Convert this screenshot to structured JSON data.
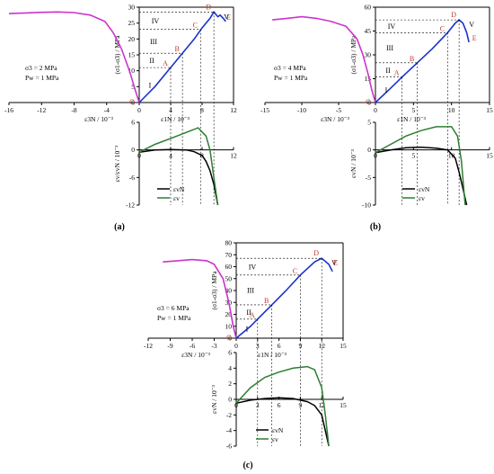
{
  "figure": {
    "panels": [
      {
        "tag": "(a)",
        "annotations": {
          "confining": "σ3 = 2 MPa",
          "pore": "Pw = 1 MPa"
        },
        "top": {
          "ylabel": "(σ1-σ3) / MPa",
          "x_left_label": "ε3N / 10⁻³",
          "x_right_label": "ε1N / 10⁻³",
          "x_ticks": [
            "-16",
            "-12",
            "-8",
            "-4",
            "0",
            "4",
            "8",
            "12"
          ],
          "y_ticks": [
            "0",
            "5",
            "10",
            "15",
            "20",
            "25",
            "30"
          ],
          "points": [
            "O",
            "A",
            "B",
            "C",
            "D",
            "E"
          ],
          "stages": [
            "I",
            "II",
            "III",
            "IV",
            "V"
          ]
        },
        "bottom": {
          "ylabel": "εv/εvN / 10⁻³",
          "x_ticks": [
            "0",
            "4",
            "8",
            "12"
          ],
          "y_ticks": [
            "6",
            "0",
            "-6",
            "-12"
          ],
          "legend": [
            "εvN",
            "εv"
          ]
        }
      },
      {
        "tag": "(b)",
        "annotations": {
          "confining": "σ3 = 4 MPa",
          "pore": "Pw = 1 MPa"
        },
        "top": {
          "ylabel": "(σ1-σ3) / MPa",
          "x_left_label": "ε3N / 10⁻³",
          "x_right_label": "ε1N / 10⁻³",
          "x_ticks": [
            "-15",
            "-10",
            "-5",
            "0",
            "5",
            "10",
            "15"
          ],
          "y_ticks": [
            "0",
            "15",
            "30",
            "45",
            "60"
          ],
          "points": [
            "O",
            "A",
            "B",
            "C",
            "D",
            "E"
          ],
          "stages": [
            "I",
            "II",
            "III",
            "IV",
            "V"
          ]
        },
        "bottom": {
          "ylabel": "εvN / 10⁻³",
          "x_ticks": [
            "0",
            "5",
            "10",
            "15"
          ],
          "y_ticks": [
            "5",
            "0",
            "-5",
            "-10"
          ],
          "legend": [
            "εvN",
            "εv"
          ]
        }
      },
      {
        "tag": "(c)",
        "annotations": {
          "confining": "σ3 = 6 MPa",
          "pore": "Pw = 1 MPa"
        },
        "top": {
          "ylabel": "(σ1-σ3) / MPa",
          "x_left_label": "ε3N / 10⁻³",
          "x_right_label": "ε1N / 10⁻³",
          "x_ticks": [
            "-12",
            "-9",
            "-6",
            "-3",
            "0",
            "3",
            "6",
            "9",
            "12",
            "15"
          ],
          "y_ticks": [
            "0",
            "10",
            "20",
            "30",
            "40",
            "50",
            "60",
            "70",
            "80"
          ],
          "points": [
            "O",
            "A",
            "B",
            "C",
            "D",
            "E"
          ],
          "stages": [
            "I",
            "II",
            "III",
            "IV",
            "V"
          ]
        },
        "bottom": {
          "ylabel": "εvN / 10⁻³",
          "x_ticks": [
            "0",
            "3",
            "6",
            "9",
            "12",
            "15"
          ],
          "y_ticks": [
            "6",
            "4",
            "2",
            "0",
            "-2",
            "-4",
            "-6"
          ],
          "legend": [
            "εvN",
            "εv"
          ]
        }
      }
    ]
  },
  "colors": {
    "lateral": "#cc33cc",
    "axial": "#1a33cc",
    "volumetric_net": "#000000",
    "volumetric": "#2e7d32",
    "point_label": "#c0392b"
  },
  "chart_data": [
    {
      "type": "line",
      "panel": "(a) top",
      "xlim": [
        -16,
        12
      ],
      "ylim": [
        0,
        30
      ],
      "series": [
        {
          "role": "lateral",
          "x": [
            0,
            -0.5,
            -1.2,
            -2.2,
            -3.2,
            -4.2,
            -6,
            -8,
            -10,
            -12,
            -14,
            -16
          ],
          "y": [
            0,
            4,
            10,
            17,
            22,
            25.5,
            27.5,
            28.3,
            28.5,
            28.4,
            28.2,
            28
          ]
        },
        {
          "role": "axial",
          "x": [
            0,
            2,
            4,
            5.5,
            7,
            8,
            9,
            9.5,
            10,
            10.3,
            10.7,
            11
          ],
          "y": [
            0,
            5,
            11,
            15.5,
            20,
            23.5,
            26.5,
            28.5,
            27,
            27.5,
            26.5,
            25.5
          ]
        }
      ],
      "points": {
        "A": [
          4,
          11
        ],
        "B": [
          5.5,
          15.5
        ],
        "C": [
          7.8,
          23
        ],
        "D": [
          9.5,
          28.5
        ],
        "E": [
          10.7,
          25.5
        ]
      }
    },
    {
      "type": "line",
      "panel": "(a) bottom",
      "xlim": [
        0,
        12
      ],
      "ylim": [
        -12,
        6
      ],
      "series": [
        {
          "name": "εvN",
          "x": [
            0,
            2,
            4,
            6,
            7,
            8,
            8.5,
            9,
            9.5,
            10
          ],
          "y": [
            -0.5,
            0,
            0.1,
            0,
            -0.4,
            -1.2,
            -2.5,
            -4.5,
            -7.5,
            -12
          ]
        },
        {
          "name": "εv",
          "x": [
            0,
            2,
            4,
            6,
            7.5,
            8.5,
            9,
            9.5,
            10
          ],
          "y": [
            -0.5,
            1.2,
            2.5,
            3.8,
            4.8,
            3,
            0,
            -6,
            -12
          ]
        }
      ]
    },
    {
      "type": "line",
      "panel": "(b) top",
      "xlim": [
        -15,
        15
      ],
      "ylim": [
        0,
        60
      ],
      "series": [
        {
          "role": "lateral",
          "x": [
            0,
            -0.5,
            -1,
            -1.7,
            -2.5,
            -4,
            -6,
            -8,
            -10,
            -12,
            -14
          ],
          "y": [
            0,
            8,
            18,
            30,
            40,
            48,
            51,
            53,
            54,
            53,
            52
          ]
        },
        {
          "role": "axial",
          "x": [
            0,
            2,
            3.5,
            5.5,
            7.5,
            9.5,
            10.5,
            11,
            11.5,
            12,
            12.3
          ],
          "y": [
            0,
            9,
            16,
            25,
            34,
            44,
            50,
            52,
            50,
            44,
            38
          ]
        }
      ],
      "points": {
        "A": [
          3.5,
          16
        ],
        "B": [
          5.5,
          25
        ],
        "C": [
          9.5,
          44
        ],
        "D": [
          11,
          52
        ],
        "E": [
          12.3,
          38
        ]
      }
    },
    {
      "type": "line",
      "panel": "(b) bottom",
      "xlim": [
        0,
        15
      ],
      "ylim": [
        -10,
        5
      ],
      "series": [
        {
          "name": "εvN",
          "x": [
            0,
            2,
            4,
            6,
            8,
            9.5,
            10.5,
            11,
            11.5,
            12
          ],
          "y": [
            -0.5,
            0,
            0.4,
            0.5,
            0.3,
            0,
            -1.5,
            -4,
            -7,
            -10
          ]
        },
        {
          "name": "εv",
          "x": [
            0,
            2,
            4,
            6,
            8,
            10,
            10.8,
            11.3,
            11.8
          ],
          "y": [
            -0.5,
            1,
            2.5,
            3.5,
            4.2,
            4.2,
            2.5,
            -2,
            -10
          ]
        }
      ]
    },
    {
      "type": "line",
      "panel": "(c) top",
      "xlim": [
        -12,
        15
      ],
      "ylim": [
        0,
        80
      ],
      "series": [
        {
          "role": "lateral",
          "x": [
            0,
            -0.4,
            -1,
            -1.8,
            -3,
            -4,
            -6,
            -8,
            -10
          ],
          "y": [
            0,
            10,
            30,
            50,
            62,
            65,
            66,
            65,
            64
          ]
        },
        {
          "role": "axial",
          "x": [
            0,
            2,
            3,
            5,
            7,
            9,
            11,
            12,
            13,
            13.5
          ],
          "y": [
            0,
            10,
            16,
            28,
            40,
            53,
            64,
            67,
            62,
            56
          ]
        }
      ],
      "points": {
        "A": [
          3,
          16
        ],
        "B": [
          5,
          28
        ],
        "C": [
          9,
          53
        ],
        "D": [
          12,
          67
        ],
        "E": [
          13.2,
          60
        ]
      }
    },
    {
      "type": "line",
      "panel": "(c) bottom",
      "xlim": [
        0,
        15
      ],
      "ylim": [
        -6,
        6
      ],
      "series": [
        {
          "name": "εvN",
          "x": [
            0,
            2,
            4,
            6,
            8,
            10,
            11,
            12,
            12.5,
            13
          ],
          "y": [
            -0.5,
            -0.1,
            0.1,
            0.2,
            0.1,
            -0.3,
            -0.8,
            -2,
            -4,
            -6
          ]
        },
        {
          "name": "εv",
          "x": [
            0,
            2,
            4,
            6,
            8,
            10,
            11,
            12,
            12.5,
            13
          ],
          "y": [
            -0.5,
            1.5,
            2.8,
            3.5,
            4,
            4.2,
            3.8,
            1.5,
            -2,
            -6
          ]
        }
      ]
    }
  ]
}
